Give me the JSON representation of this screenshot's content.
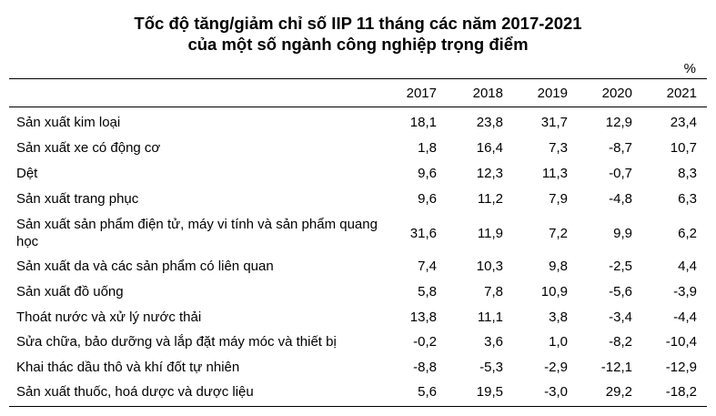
{
  "chart_data": {
    "type": "table",
    "title": "Tốc độ tăng/giảm chỉ số IIP 11 tháng các năm 2017-2021",
    "subtitle": "của một số ngành công nghiệp trọng điểm",
    "unit": "%",
    "columns": [
      "2017",
      "2018",
      "2019",
      "2020",
      "2021"
    ],
    "rows": [
      {
        "label": "Sản xuất kim loại",
        "values": [
          "18,1",
          "23,8",
          "31,7",
          "12,9",
          "23,4"
        ]
      },
      {
        "label": "Sản xuất xe có động cơ",
        "values": [
          "1,8",
          "16,4",
          "7,3",
          "-8,7",
          "10,7"
        ]
      },
      {
        "label": "Dệt",
        "values": [
          "9,6",
          "12,3",
          "11,3",
          "-0,7",
          "8,3"
        ]
      },
      {
        "label": "Sản xuất trang phục",
        "values": [
          "9,6",
          "11,2",
          "7,9",
          "-4,8",
          "6,3"
        ]
      },
      {
        "label": "Sản xuất sản phẩm điện tử, máy vi tính và sản phẩm quang học",
        "values": [
          "31,6",
          "11,9",
          "7,2",
          "9,9",
          "6,2"
        ]
      },
      {
        "label": "Sản xuất da và các sản phẩm có liên quan",
        "values": [
          "7,4",
          "10,3",
          "9,8",
          "-2,5",
          "4,4"
        ]
      },
      {
        "label": "Sản xuất đồ uống",
        "values": [
          "5,8",
          "7,8",
          "10,9",
          "-5,6",
          "-3,9"
        ]
      },
      {
        "label": "Thoát nước và xử lý nước thải",
        "values": [
          "13,8",
          "11,1",
          "3,8",
          "-3,4",
          "-4,4"
        ]
      },
      {
        "label": "Sửa chữa, bảo dưỡng và lắp đặt máy móc và thiết bị",
        "values": [
          "-0,2",
          "3,6",
          "1,0",
          "-8,2",
          "-10,4"
        ]
      },
      {
        "label": "Khai thác dầu thô và khí đốt tự nhiên",
        "values": [
          "-8,8",
          "-5,3",
          "-2,9",
          "-12,1",
          "-12,9"
        ]
      },
      {
        "label": "Sản xuất thuốc, hoá dược và dược liệu",
        "values": [
          "5,6",
          "19,5",
          "-3,0",
          "29,2",
          "-18,2"
        ]
      }
    ]
  }
}
